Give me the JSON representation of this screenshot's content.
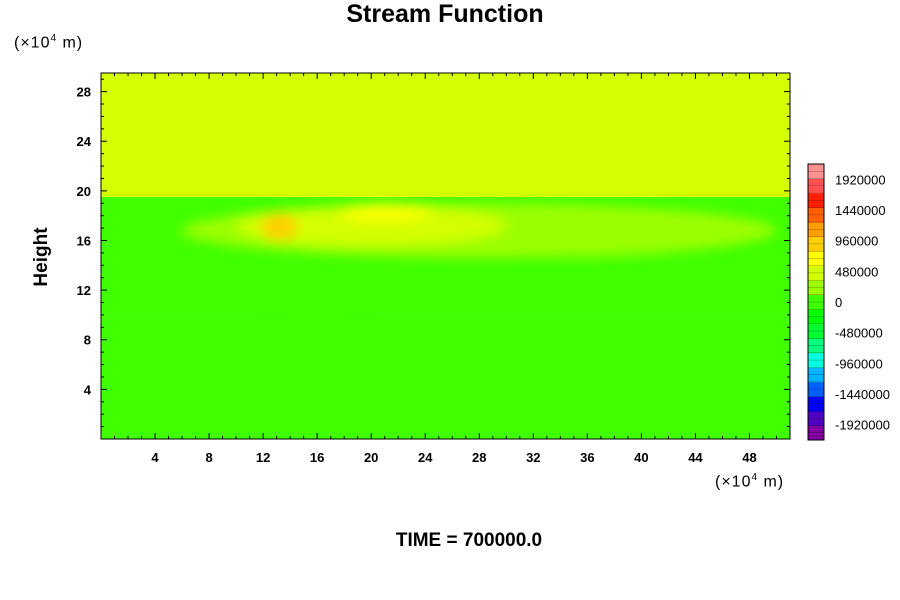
{
  "chart_data": {
    "type": "heatmap",
    "title": "Stream Function",
    "ylabel": "Height",
    "y_unit": {
      "prefix": "(×10",
      "exp": "4",
      "suffix": " m)"
    },
    "x_unit": {
      "prefix": "(×10",
      "exp": "4",
      "suffix": " m)"
    },
    "xlim": [
      0,
      51
    ],
    "ylim": [
      0,
      29.5
    ],
    "x_ticks": [
      4,
      8,
      12,
      16,
      20,
      24,
      28,
      32,
      36,
      40,
      44,
      48
    ],
    "y_ticks": [
      4,
      8,
      12,
      16,
      20,
      24,
      28
    ],
    "colorbar": {
      "range": [
        -2160000,
        2160000
      ],
      "labels": [
        "1920000",
        "1440000",
        "960000",
        "480000",
        "0",
        "-480000",
        "-960000",
        "-1440000",
        "-1920000"
      ],
      "colors": [
        "#8000a0",
        "#5000c0",
        "#0000ff",
        "#0060ff",
        "#00b4ff",
        "#00ffe0",
        "#00ff80",
        "#00ff30",
        "#00ff00",
        "#40ff00",
        "#9cff00",
        "#d4ff00",
        "#ffff00",
        "#ffd000",
        "#ffa000",
        "#ff6000",
        "#ff2000",
        "#ff5050",
        "#ff9090"
      ]
    },
    "regions": [
      {
        "kind": "band",
        "y": [
          0,
          10
        ],
        "value": 0
      },
      {
        "kind": "band",
        "y": [
          10,
          19.5
        ],
        "value": 40000
      },
      {
        "kind": "band",
        "y": [
          19.5,
          29.5
        ],
        "value": 560000
      },
      {
        "kind": "blob",
        "x": 3.5,
        "y": 15.5,
        "rx": 3,
        "ry": 1.5,
        "value": -60000
      },
      {
        "kind": "blob",
        "x": 40,
        "y": 13,
        "rx": 6,
        "ry": 1.5,
        "value": -50000
      },
      {
        "kind": "blob",
        "x": 16,
        "y": 11,
        "rx": 4,
        "ry": 1.2,
        "value": -40000
      },
      {
        "kind": "blob",
        "x": 28,
        "y": 16.8,
        "rx": 22,
        "ry": 2.2,
        "value": 220000
      },
      {
        "kind": "blob",
        "x": 20,
        "y": 17.2,
        "rx": 10,
        "ry": 1.6,
        "value": 360000
      },
      {
        "kind": "blob",
        "x": 21,
        "y": 18.3,
        "rx": 3.5,
        "ry": 0.7,
        "value": 700000
      },
      {
        "kind": "blob",
        "x": 13.2,
        "y": 17.1,
        "rx": 1.3,
        "ry": 1.1,
        "value": 900000
      }
    ]
  },
  "time_label": "TIME = 700000.0"
}
